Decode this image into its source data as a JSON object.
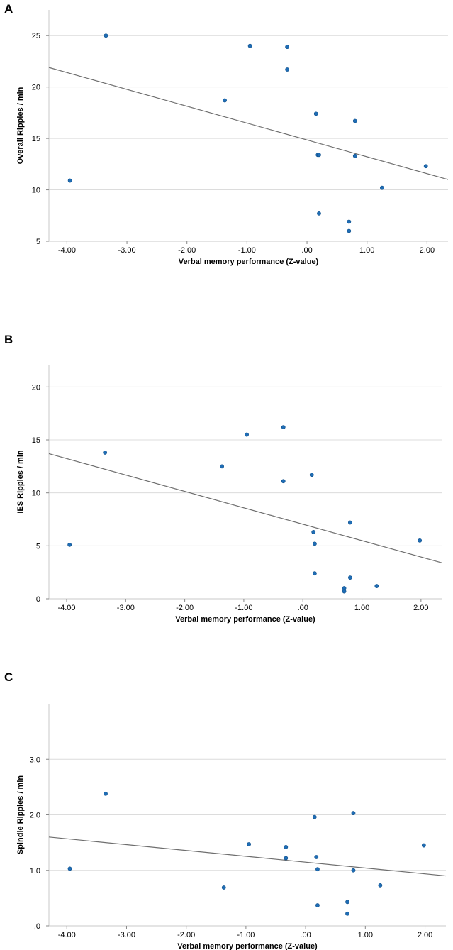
{
  "chart_data": [
    {
      "type": "scatter",
      "panel": "A",
      "title": "",
      "xlabel": "Verbal memory performance (Z-value)",
      "ylabel": "Overall Ripples / min",
      "xlim": [
        -4.3,
        2.35
      ],
      "ylim": [
        5,
        27.5
      ],
      "xticks": [
        -4,
        -3,
        -2,
        -1,
        0,
        1,
        2
      ],
      "xtick_labels": [
        "-4.00",
        "-3.00",
        "-2.00",
        "-1.00",
        ".00",
        "1.00",
        "2.00"
      ],
      "yticks": [
        5,
        10,
        15,
        20,
        25
      ],
      "ytick_labels": [
        "5",
        "10",
        "15",
        "20",
        "25"
      ],
      "grid": "horizontal",
      "points": [
        {
          "x": -3.95,
          "y": 10.9
        },
        {
          "x": -3.35,
          "y": 25.0
        },
        {
          "x": -1.37,
          "y": 18.7
        },
        {
          "x": -0.95,
          "y": 24.0
        },
        {
          "x": -0.33,
          "y": 23.9
        },
        {
          "x": -0.33,
          "y": 21.7
        },
        {
          "x": 0.15,
          "y": 17.4
        },
        {
          "x": 0.18,
          "y": 13.4
        },
        {
          "x": 0.2,
          "y": 13.4
        },
        {
          "x": 0.2,
          "y": 7.7
        },
        {
          "x": 0.7,
          "y": 6.9
        },
        {
          "x": 0.7,
          "y": 6.0
        },
        {
          "x": 0.8,
          "y": 16.7
        },
        {
          "x": 0.8,
          "y": 13.3
        },
        {
          "x": 1.25,
          "y": 10.2
        },
        {
          "x": 1.98,
          "y": 12.3
        }
      ],
      "fit_line": {
        "x": [
          -4.3,
          2.35
        ],
        "y": [
          21.9,
          11.0
        ]
      }
    },
    {
      "type": "scatter",
      "panel": "B",
      "title": "",
      "xlabel": "Verbal memory performance (Z-value)",
      "ylabel": "IES Ripples / min",
      "xlim": [
        -4.3,
        2.35
      ],
      "ylim": [
        0,
        22.1
      ],
      "xticks": [
        -4,
        -3,
        -2,
        -1,
        0,
        1,
        2
      ],
      "xtick_labels": [
        "-4.00",
        "-3.00",
        "-2.00",
        "-1.00",
        ".00",
        "1.00",
        "2.00"
      ],
      "yticks": [
        0,
        5,
        10,
        15,
        20
      ],
      "ytick_labels": [
        "0",
        "5",
        "10",
        "15",
        "20"
      ],
      "grid": "horizontal",
      "points": [
        {
          "x": -3.95,
          "y": 5.1
        },
        {
          "x": -3.35,
          "y": 13.8
        },
        {
          "x": -1.37,
          "y": 12.5
        },
        {
          "x": -0.95,
          "y": 15.5
        },
        {
          "x": -0.33,
          "y": 16.2
        },
        {
          "x": -0.33,
          "y": 11.1
        },
        {
          "x": 0.15,
          "y": 11.7
        },
        {
          "x": 0.18,
          "y": 6.3
        },
        {
          "x": 0.2,
          "y": 5.2
        },
        {
          "x": 0.2,
          "y": 2.4
        },
        {
          "x": 0.7,
          "y": 1.0
        },
        {
          "x": 0.7,
          "y": 0.7
        },
        {
          "x": 0.8,
          "y": 7.2
        },
        {
          "x": 0.8,
          "y": 2.0
        },
        {
          "x": 1.25,
          "y": 1.2
        },
        {
          "x": 1.98,
          "y": 5.5
        }
      ],
      "fit_line": {
        "x": [
          -4.3,
          2.35
        ],
        "y": [
          13.7,
          3.4
        ]
      }
    },
    {
      "type": "scatter",
      "panel": "C",
      "title": "",
      "xlabel": "Verbal memory performance (Z-value)",
      "ylabel": "Spindle Ripples / min",
      "xlim": [
        -4.3,
        2.35
      ],
      "ylim": [
        0,
        4.0
      ],
      "xticks": [
        -4,
        -3,
        -2,
        -1,
        0,
        1,
        2
      ],
      "xtick_labels": [
        "-4.00",
        "-3.00",
        "-2.00",
        "-1.00",
        ".00",
        "1.00",
        "2.00"
      ],
      "yticks": [
        0,
        1,
        2,
        3
      ],
      "ytick_labels": [
        ",0",
        "1,0",
        "2,0",
        "3,0"
      ],
      "grid": "horizontal",
      "points": [
        {
          "x": -3.95,
          "y": 1.03
        },
        {
          "x": -3.35,
          "y": 2.38
        },
        {
          "x": -1.37,
          "y": 0.69
        },
        {
          "x": -0.95,
          "y": 1.47
        },
        {
          "x": -0.33,
          "y": 1.42
        },
        {
          "x": -0.33,
          "y": 1.22
        },
        {
          "x": 0.15,
          "y": 1.96
        },
        {
          "x": 0.18,
          "y": 1.24
        },
        {
          "x": 0.2,
          "y": 1.02
        },
        {
          "x": 0.2,
          "y": 0.37
        },
        {
          "x": 0.7,
          "y": 0.43
        },
        {
          "x": 0.7,
          "y": 0.22
        },
        {
          "x": 0.8,
          "y": 2.03
        },
        {
          "x": 0.8,
          "y": 1.0
        },
        {
          "x": 1.25,
          "y": 0.73
        },
        {
          "x": 1.98,
          "y": 1.45
        }
      ],
      "fit_line": {
        "x": [
          -4.3,
          2.35
        ],
        "y": [
          1.6,
          0.9
        ]
      }
    }
  ]
}
